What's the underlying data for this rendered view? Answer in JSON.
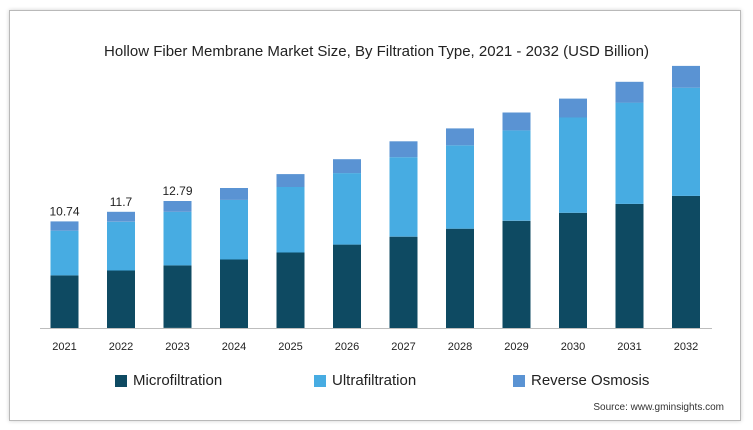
{
  "chart_data": {
    "type": "bar",
    "stacked": true,
    "title": "Hollow Fiber Membrane Market Size, By Filtration Type, 2021 - 2032 (USD Billion)",
    "categories": [
      "2021",
      "2022",
      "2023",
      "2024",
      "2025",
      "2026",
      "2027",
      "2028",
      "2029",
      "2030",
      "2031",
      "2032"
    ],
    "series": [
      {
        "name": "Microfiltration",
        "color": "#0e4a62",
        "values": [
          5.3,
          5.8,
          6.3,
          6.9,
          7.6,
          8.4,
          9.2,
          10.0,
          10.8,
          11.6,
          12.5,
          13.3
        ]
      },
      {
        "name": "Ultrafiltration",
        "color": "#47ace2",
        "values": [
          4.5,
          4.9,
          5.4,
          6.0,
          6.6,
          7.2,
          8.0,
          8.4,
          9.1,
          9.6,
          10.2,
          10.9
        ]
      },
      {
        "name": "Reverse Osmosis",
        "color": "#5a93d3",
        "values": [
          0.94,
          1.0,
          1.09,
          1.2,
          1.3,
          1.4,
          1.6,
          1.7,
          1.8,
          1.9,
          2.1,
          2.2
        ]
      }
    ],
    "data_labels": [
      "10.74",
      "11.7",
      "12.79"
    ],
    "ylim": [
      0,
      28
    ],
    "grid": false,
    "legend_position": "bottom"
  },
  "source": "Source: www.gminsights.com"
}
